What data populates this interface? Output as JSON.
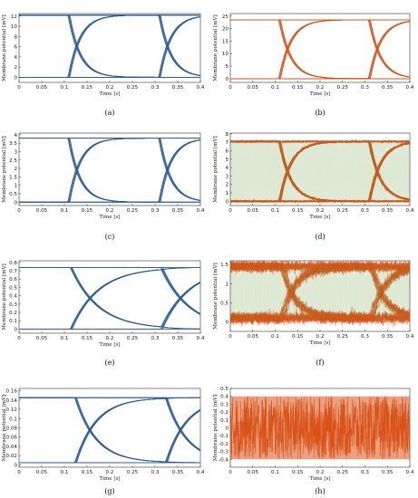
{
  "figure": {
    "colors": {
      "blue": "#2a5d9a",
      "orange": "#d95319",
      "green": "#5b8f2a"
    },
    "panels": [
      {
        "caption": "(a)",
        "chart_data": {
          "type": "line",
          "xlabel": "Time [s]",
          "ylabel": "Membrane potential [mV]",
          "xlim": [
            0,
            0.4
          ],
          "ylim": [
            -1,
            12.5
          ],
          "xticks": [
            "0",
            "0.05",
            "0.1",
            "0.15",
            "0.2",
            "0.25",
            "0.3",
            "0.35",
            "0.4"
          ],
          "yticks": [
            0,
            2,
            4,
            6,
            8,
            10,
            12
          ],
          "pattern": "eye-diagram",
          "switch_times": [
            0.11,
            0.31
          ],
          "tau": 0.025,
          "levels": [
            0,
            12.2
          ],
          "noise_level": "none",
          "color": "blue"
        }
      },
      {
        "caption": "(b)",
        "chart_data": {
          "type": "line",
          "xlabel": "Time [s]",
          "ylabel": "Membrane potential [mV]",
          "xlim": [
            0,
            0.4
          ],
          "ylim": [
            -1.5,
            26
          ],
          "xticks": [
            "0",
            "0.05",
            "0.1",
            "0.15",
            "0.2",
            "0.25",
            "0.3",
            "0.35",
            "0.4"
          ],
          "yticks": [
            0,
            5,
            10,
            15,
            20,
            25
          ],
          "pattern": "eye-diagram",
          "switch_times": [
            0.11,
            0.31
          ],
          "tau": 0.025,
          "levels": [
            0,
            23.5
          ],
          "noise_level": "none",
          "color": "orange"
        }
      },
      {
        "caption": "(c)",
        "chart_data": {
          "type": "line",
          "xlabel": "Time [s]",
          "ylabel": "Membrane potential [mV]",
          "xlim": [
            0,
            0.4
          ],
          "ylim": [
            -0.2,
            4.1
          ],
          "xticks": [
            "0",
            "0.05",
            "0.1",
            "0.15",
            "0.2",
            "0.25",
            "0.3",
            "0.35",
            "0.4"
          ],
          "yticks": [
            0,
            0.5,
            1,
            1.5,
            2,
            2.5,
            3,
            3.5,
            4
          ],
          "pattern": "eye-diagram",
          "switch_times": [
            0.11,
            0.31
          ],
          "tau": 0.025,
          "levels": [
            0,
            3.8
          ],
          "noise_level": "none",
          "color": "blue"
        }
      },
      {
        "caption": "(d)",
        "chart_data": {
          "type": "line",
          "xlabel": "Time [s]",
          "ylabel": "Membrane potential [mV]",
          "xlim": [
            0,
            0.4
          ],
          "ylim": [
            -0.5,
            8.1
          ],
          "xticks": [
            "0",
            "0.05",
            "0.1",
            "0.15",
            "0.2",
            "0.25",
            "0.3",
            "0.35",
            "0.4"
          ],
          "yticks": [
            0,
            1,
            2,
            3,
            4,
            5,
            6,
            7,
            8
          ],
          "pattern": "eye-diagram",
          "switch_times": [
            0.11,
            0.31
          ],
          "tau": 0.025,
          "levels": [
            0,
            7.1
          ],
          "noise_level": "low",
          "color": "orange"
        }
      },
      {
        "caption": "(e)",
        "chart_data": {
          "type": "line",
          "xlabel": "Time [s]",
          "ylabel": "Membrane potential [mV]",
          "xlim": [
            0,
            0.4
          ],
          "ylim": [
            -0.05,
            0.82
          ],
          "xticks": [
            "0",
            "0.05",
            "0.1",
            "0.15",
            "0.2",
            "0.25",
            "0.3",
            "0.35",
            "0.4"
          ],
          "yticks": [
            0,
            0.1,
            0.2,
            0.3,
            0.4,
            0.5,
            0.6,
            0.7,
            0.8
          ],
          "pattern": "eye-diagram",
          "switch_times": [
            0.115,
            0.315
          ],
          "tau": 0.06,
          "levels": [
            0,
            0.74
          ],
          "noise_level": "none",
          "color": "blue"
        }
      },
      {
        "caption": "(f)",
        "chart_data": {
          "type": "line",
          "xlabel": "Time [s]",
          "ylabel": "Membrane potential [mV]",
          "xlim": [
            0,
            0.4
          ],
          "ylim": [
            -0.25,
            1.6
          ],
          "xticks": [
            "0",
            "0.05",
            "0.1",
            "0.15",
            "0.2",
            "0.25",
            "0.3",
            "0.35",
            "0.4"
          ],
          "yticks": [
            0,
            0.5,
            1,
            1.5
          ],
          "pattern": "eye-diagram",
          "switch_times": [
            0.115,
            0.315
          ],
          "tau": 0.03,
          "levels": [
            0.1,
            1.45
          ],
          "noise_level": "high",
          "color": "orange"
        }
      },
      {
        "caption": "(g)",
        "chart_data": {
          "type": "line",
          "xlabel": "Time [s]",
          "ylabel": "Membrane potential [mV]",
          "xlim": [
            0,
            0.4
          ],
          "ylim": [
            -0.005,
            0.165
          ],
          "xticks": [
            "0",
            "0.05",
            "0.1",
            "0.15",
            "0.2",
            "0.25",
            "0.3",
            "0.35",
            "0.4"
          ],
          "yticks": [
            0,
            0.02,
            0.04,
            0.06,
            0.08,
            0.1,
            0.12,
            0.14,
            0.16
          ],
          "pattern": "eye-diagram",
          "switch_times": [
            0.125,
            0.325
          ],
          "tau": 0.045,
          "levels": [
            0.005,
            0.145
          ],
          "noise_level": "none",
          "color": "blue"
        }
      },
      {
        "caption": "(h)",
        "chart_data": {
          "type": "line",
          "xlabel": "Time [s]",
          "ylabel": "Membrane potential [mV]",
          "xlim": [
            0,
            0.4
          ],
          "ylim": [
            -0.5,
            0.5
          ],
          "xticks": [
            "0",
            "0.05",
            "0.1",
            "0.15",
            "0.2",
            "0.25",
            "0.3",
            "0.35",
            "0.4"
          ],
          "yticks": [
            -0.4,
            -0.3,
            -0.2,
            -0.1,
            0,
            0.1,
            0.2,
            0.3,
            0.4,
            0.5
          ],
          "pattern": "noise-band",
          "band": [
            -0.4,
            0.4
          ],
          "noise_level": "very-high",
          "color": "orange"
        }
      }
    ]
  }
}
